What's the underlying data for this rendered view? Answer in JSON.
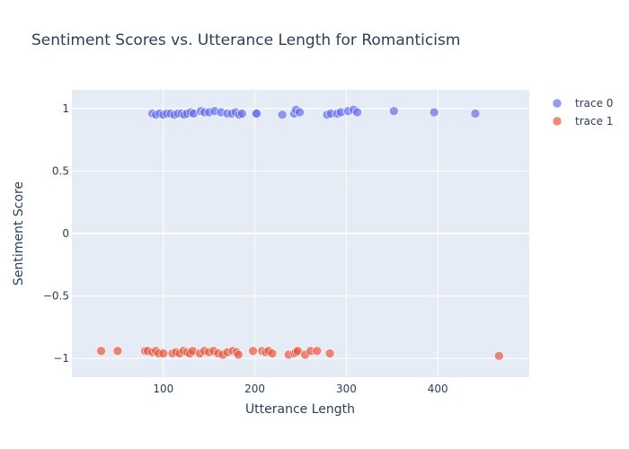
{
  "chart_data": {
    "type": "scatter",
    "title": "Sentiment Scores vs. Utterance Length for Romanticism",
    "xlabel": "Utterance Length",
    "ylabel": "Sentiment Score",
    "xlim": [
      0,
      500
    ],
    "ylim": [
      -1.15,
      1.15
    ],
    "xticks": [
      100,
      200,
      300,
      400
    ],
    "xtick_labels": [
      "100",
      "200",
      "300",
      "400"
    ],
    "yticks": [
      -1,
      -0.5,
      0,
      0.5,
      1
    ],
    "ytick_labels": [
      "−1",
      "−0.5",
      "0",
      "0.5",
      "1"
    ],
    "grid": true,
    "legend_position": "top-right",
    "series": [
      {
        "name": "trace 0",
        "color": "#636efa",
        "points": [
          [
            88,
            0.96
          ],
          [
            92,
            0.95
          ],
          [
            96,
            0.96
          ],
          [
            100,
            0.95
          ],
          [
            104,
            0.96
          ],
          [
            108,
            0.96
          ],
          [
            112,
            0.95
          ],
          [
            116,
            0.96
          ],
          [
            120,
            0.96
          ],
          [
            123,
            0.95
          ],
          [
            126,
            0.96
          ],
          [
            130,
            0.97
          ],
          [
            133,
            0.96
          ],
          [
            141,
            0.98
          ],
          [
            145,
            0.97
          ],
          [
            150,
            0.97
          ],
          [
            156,
            0.98
          ],
          [
            163,
            0.97
          ],
          [
            170,
            0.96
          ],
          [
            175,
            0.96
          ],
          [
            179,
            0.97
          ],
          [
            183,
            0.95
          ],
          [
            186,
            0.96
          ],
          [
            201,
            0.96
          ],
          [
            202,
            0.96
          ],
          [
            230,
            0.95
          ],
          [
            243,
            0.96
          ],
          [
            245,
            0.99
          ],
          [
            249,
            0.97
          ],
          [
            279,
            0.95
          ],
          [
            283,
            0.96
          ],
          [
            290,
            0.96
          ],
          [
            294,
            0.97
          ],
          [
            302,
            0.98
          ],
          [
            308,
            0.99
          ],
          [
            312,
            0.97
          ],
          [
            352,
            0.98
          ],
          [
            396,
            0.97
          ],
          [
            441,
            0.96
          ]
        ]
      },
      {
        "name": "trace 1",
        "color": "#ef553b",
        "points": [
          [
            32,
            -0.94
          ],
          [
            50,
            -0.94
          ],
          [
            80,
            -0.94
          ],
          [
            83,
            -0.94
          ],
          [
            88,
            -0.95
          ],
          [
            92,
            -0.94
          ],
          [
            95,
            -0.96
          ],
          [
            100,
            -0.96
          ],
          [
            110,
            -0.96
          ],
          [
            114,
            -0.95
          ],
          [
            118,
            -0.96
          ],
          [
            122,
            -0.94
          ],
          [
            126,
            -0.95
          ],
          [
            129,
            -0.96
          ],
          [
            132,
            -0.94
          ],
          [
            140,
            -0.96
          ],
          [
            145,
            -0.94
          ],
          [
            150,
            -0.95
          ],
          [
            155,
            -0.94
          ],
          [
            160,
            -0.96
          ],
          [
            165,
            -0.97
          ],
          [
            170,
            -0.95
          ],
          [
            176,
            -0.94
          ],
          [
            180,
            -0.95
          ],
          [
            182,
            -0.97
          ],
          [
            198,
            -0.94
          ],
          [
            208,
            -0.94
          ],
          [
            212,
            -0.95
          ],
          [
            215,
            -0.94
          ],
          [
            219,
            -0.96
          ],
          [
            237,
            -0.97
          ],
          [
            243,
            -0.96
          ],
          [
            245,
            -0.95
          ],
          [
            247,
            -0.94
          ],
          [
            255,
            -0.97
          ],
          [
            261,
            -0.94
          ],
          [
            268,
            -0.94
          ],
          [
            282,
            -0.96
          ],
          [
            467,
            -0.98
          ]
        ]
      }
    ]
  }
}
